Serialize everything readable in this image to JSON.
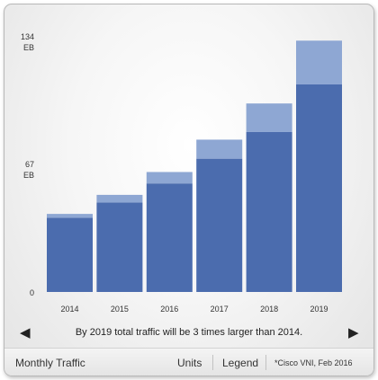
{
  "chart_data": {
    "type": "bar",
    "stacked": true,
    "categories": [
      "2014",
      "2015",
      "2016",
      "2017",
      "2018",
      "2019"
    ],
    "series": [
      {
        "values": [
          39,
          47,
          57,
          70,
          84,
          109
        ],
        "color": "#4b6cae"
      },
      {
        "values": [
          2,
          4,
          6,
          10,
          15,
          23
        ],
        "color": "#8ea7d3"
      }
    ],
    "totals": [
      41,
      51,
      63,
      80,
      99,
      132
    ],
    "ylim": [
      0,
      134
    ],
    "yticks": [
      {
        "value": 134,
        "line1": "134",
        "line2": "EB"
      },
      {
        "value": 67,
        "line1": "67",
        "line2": "EB"
      },
      {
        "value": 0,
        "line1": "0",
        "line2": ""
      }
    ],
    "grid": false
  },
  "caption": "By 2019 total traffic will be 3 times larger than 2014.",
  "nav": {
    "prev_icon": "‹",
    "next_icon": "›"
  },
  "footer": {
    "title": "Monthly Traffic",
    "units_label": "Units",
    "legend_label": "Legend",
    "source": "*Cisco VNI, Feb 2016"
  }
}
